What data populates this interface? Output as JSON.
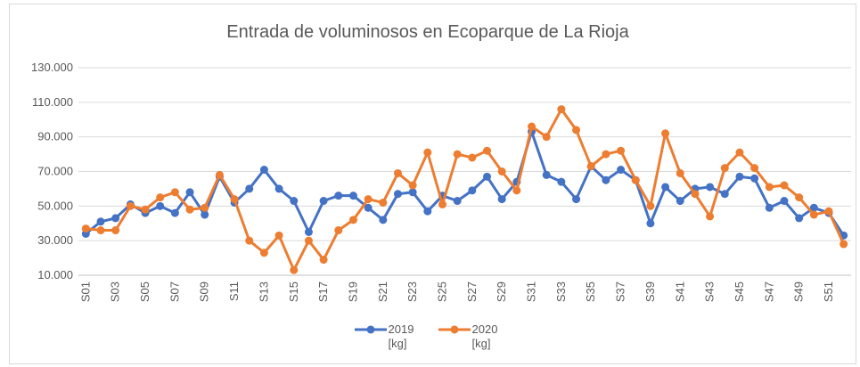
{
  "chart_data": {
    "type": "line",
    "title": "Entrada de voluminosos en Ecoparque de La Rioja",
    "categories": [
      "S01",
      null,
      "S03",
      null,
      "S05",
      null,
      "S07",
      null,
      "S09",
      null,
      "S11",
      null,
      "S13",
      null,
      "S15",
      null,
      "S17",
      null,
      "S19",
      null,
      "S21",
      null,
      "S23",
      null,
      "S25",
      null,
      "S27",
      null,
      "S29",
      null,
      "S31",
      null,
      "S33",
      null,
      "S35",
      null,
      "S37",
      null,
      "S39",
      null,
      "S41",
      null,
      "S43",
      null,
      "S45",
      null,
      "S47",
      null,
      "S49",
      null,
      "S51",
      null
    ],
    "series": [
      {
        "name": "2019 [kg]",
        "color": "#4472c4",
        "values": [
          34000,
          41000,
          43000,
          51000,
          46000,
          50000,
          46000,
          58000,
          45000,
          67000,
          52000,
          60000,
          71000,
          60000,
          53000,
          35000,
          53000,
          56000,
          56000,
          49000,
          42000,
          57000,
          58000,
          47000,
          56000,
          53000,
          59000,
          67000,
          54000,
          64000,
          93000,
          68000,
          64000,
          54000,
          73000,
          65000,
          71000,
          65000,
          40000,
          61000,
          53000,
          60000,
          61000,
          57000,
          67000,
          66000,
          49000,
          53000,
          43000,
          49000,
          46000,
          33000
        ]
      },
      {
        "name": "2020 [kg]",
        "color": "#ed7d31",
        "values": [
          37000,
          36000,
          36000,
          50000,
          48000,
          55000,
          58000,
          48000,
          49000,
          68000,
          54000,
          30000,
          23000,
          33000,
          13000,
          30000,
          19000,
          36000,
          42000,
          54000,
          52000,
          69000,
          62000,
          81000,
          51000,
          80000,
          78000,
          82000,
          70000,
          59000,
          96000,
          90000,
          106000,
          94000,
          73000,
          80000,
          82000,
          65000,
          50000,
          92000,
          69000,
          57000,
          44000,
          72000,
          81000,
          72000,
          61000,
          62000,
          55000,
          45000,
          47000,
          28000
        ]
      }
    ],
    "ylim": [
      10000,
      130000
    ],
    "yticks": [
      {
        "value": 10000,
        "label": "10.000"
      },
      {
        "value": 30000,
        "label": "30.000"
      },
      {
        "value": 50000,
        "label": "50.000"
      },
      {
        "value": 70000,
        "label": "70.000"
      },
      {
        "value": 90000,
        "label": "90.000"
      },
      {
        "value": 110000,
        "label": "110.000"
      },
      {
        "value": 130000,
        "label": "130.000"
      }
    ],
    "grid": true
  }
}
